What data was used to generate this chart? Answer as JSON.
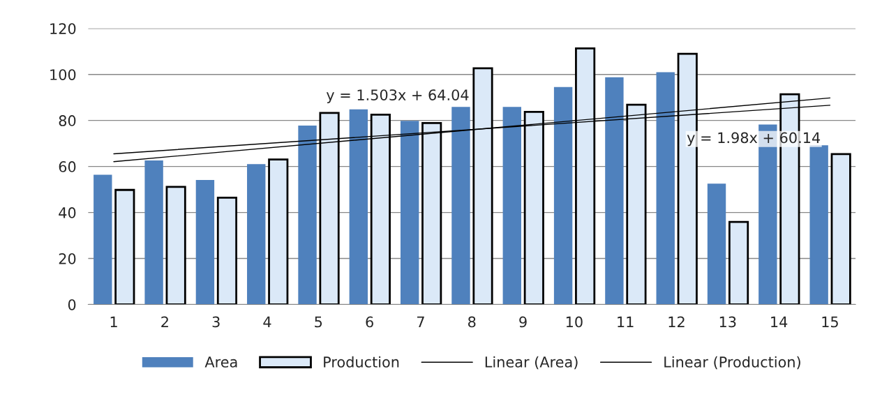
{
  "chart_data": {
    "type": "bar",
    "categories": [
      "1",
      "2",
      "3",
      "4",
      "5",
      "6",
      "7",
      "8",
      "9",
      "10",
      "11",
      "12",
      "13",
      "14",
      "15"
    ],
    "series": [
      {
        "name": "Area",
        "color": "#4f81bd",
        "values": [
          56.4,
          62.6,
          54.1,
          61.0,
          77.8,
          84.8,
          79.8,
          85.9,
          85.9,
          94.5,
          98.8,
          101.0,
          52.5,
          78.2,
          69.2
        ]
      },
      {
        "name": "Production",
        "color": "#dbe9f8",
        "values": [
          49.8,
          51.1,
          46.4,
          63.0,
          83.3,
          82.5,
          78.9,
          102.7,
          83.7,
          111.3,
          86.8,
          109.0,
          35.9,
          91.4,
          65.4
        ]
      },
      {
        "name": "Linear (Area)",
        "type": "line",
        "color": "#000000",
        "x": [
          "1",
          "15"
        ],
        "values": [
          65.5,
          86.6
        ]
      },
      {
        "name": "Linear (Production)",
        "type": "line",
        "color": "#000000",
        "x": [
          "1",
          "15"
        ],
        "values": [
          62.1,
          89.8
        ]
      }
    ],
    "annotations": [
      "y = 1.503x + 64.04",
      "y = 1.98x + 60.14"
    ],
    "ylim": [
      0,
      120
    ],
    "yticks": [
      0,
      20,
      40,
      60,
      80,
      100,
      120
    ],
    "grid": "y",
    "legend": "bottom"
  }
}
